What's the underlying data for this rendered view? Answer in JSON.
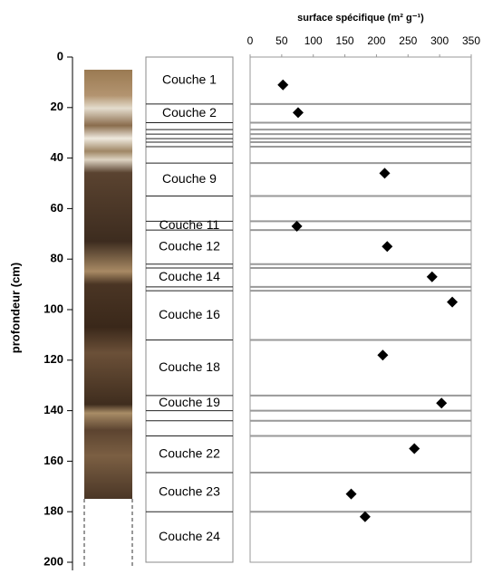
{
  "chart_data": {
    "type": "scatter",
    "title": "surface spécifique (m² g⁻¹)",
    "ylabel": "profondeur (cm)",
    "x": [
      52,
      76,
      213,
      74,
      217,
      288,
      320,
      210,
      303,
      260,
      160,
      182
    ],
    "values": [
      11,
      22,
      46,
      67,
      75,
      87,
      97,
      118,
      137,
      155,
      173,
      182
    ],
    "color": "#000000",
    "xlim": [
      0,
      350
    ],
    "xticks": [
      0,
      50,
      100,
      150,
      200,
      250,
      300,
      350
    ],
    "ylim": [
      0,
      200
    ],
    "yticks": [
      0,
      20,
      40,
      60,
      80,
      100,
      120,
      140,
      160,
      180,
      200
    ],
    "boundaries": [
      18.6,
      26,
      28.7,
      30.5,
      32.3,
      33.7,
      35.5,
      42,
      55,
      65,
      68.5,
      82,
      83.5,
      91,
      92.5,
      112,
      134,
      140,
      144,
      150,
      164.5,
      180
    ],
    "layers": [
      {
        "name": "Couche 1",
        "top": 0,
        "bottom": 18.6
      },
      {
        "name": "Couche 2",
        "top": 18.6,
        "bottom": 26
      },
      {
        "name": "Couche 9",
        "top": 42,
        "bottom": 55
      },
      {
        "name": "Couche 11",
        "top": 65,
        "bottom": 68.5
      },
      {
        "name": "Couche 12",
        "top": 68.5,
        "bottom": 82
      },
      {
        "name": "Couche 14",
        "top": 83.5,
        "bottom": 91
      },
      {
        "name": "Couche 16",
        "top": 92.5,
        "bottom": 112
      },
      {
        "name": "Couche 18",
        "top": 112,
        "bottom": 134
      },
      {
        "name": "Couche 19",
        "top": 134,
        "bottom": 140
      },
      {
        "name": "Couche 22",
        "top": 150,
        "bottom": 164.5
      },
      {
        "name": "Couche 23",
        "top": 164.5,
        "bottom": 180
      },
      {
        "name": "Couche 24",
        "top": 180,
        "bottom": 200
      }
    ]
  }
}
